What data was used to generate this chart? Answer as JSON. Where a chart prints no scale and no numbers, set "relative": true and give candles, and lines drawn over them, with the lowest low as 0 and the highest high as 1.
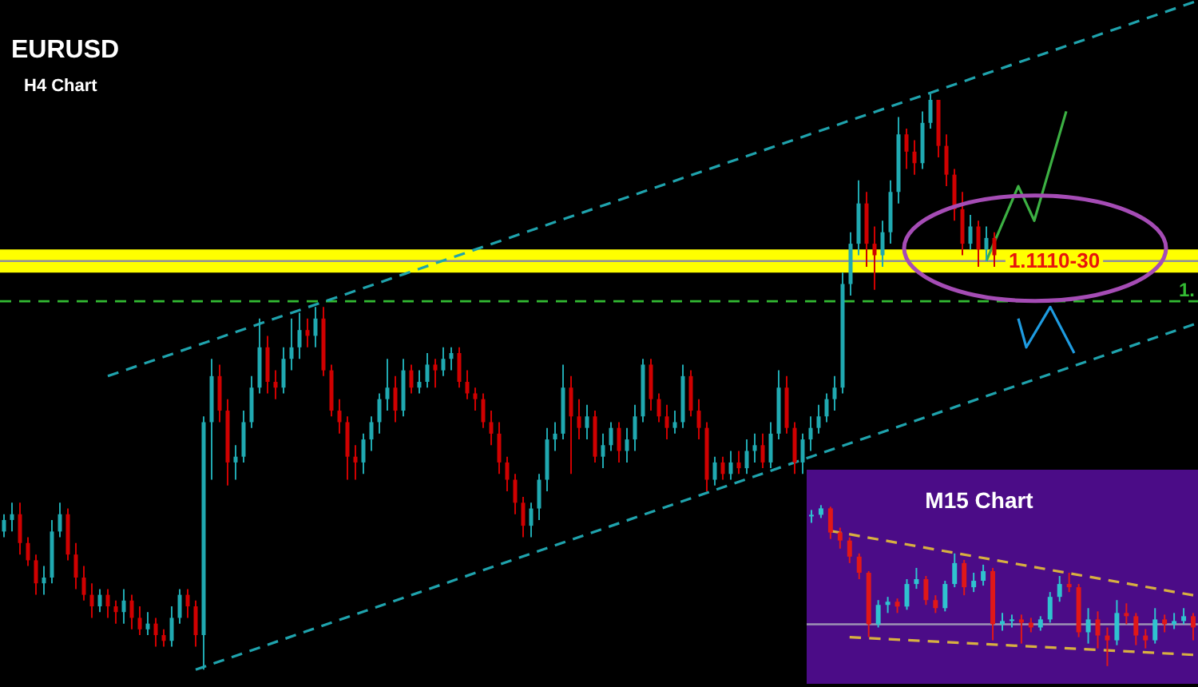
{
  "chart_data": [
    {
      "type": "candlestick",
      "title": "EURUSD",
      "subtitle": "H4 Chart",
      "relative": true,
      "tick_labels": false,
      "categories": [
        null,
        null,
        null,
        null,
        null,
        null,
        null,
        null,
        null,
        null,
        null,
        null,
        null,
        null,
        null,
        null,
        null,
        null,
        null,
        null,
        null,
        null,
        null,
        null,
        null,
        null,
        null,
        null,
        null,
        null,
        null,
        null,
        null,
        null,
        null,
        null,
        null,
        null,
        null,
        null,
        null,
        null,
        null,
        null,
        null,
        null,
        null,
        null,
        null,
        null,
        null,
        null,
        null,
        null,
        null,
        null,
        null,
        null,
        null,
        null,
        null,
        null,
        null,
        null,
        null,
        null,
        null,
        null,
        null,
        null,
        null,
        null,
        null,
        null,
        null,
        null,
        null,
        null,
        null,
        null,
        null,
        null,
        null,
        null,
        null,
        null,
        null,
        null,
        null,
        null,
        null,
        null,
        null,
        null,
        null,
        null,
        null,
        null,
        null,
        null,
        null,
        null,
        null,
        null,
        null,
        null,
        null,
        null,
        null,
        null,
        null,
        null,
        null,
        null,
        null,
        null,
        null,
        null,
        null,
        null,
        null,
        null,
        null,
        null,
        null,
        null,
        null,
        null,
        null,
        null,
        null,
        null,
        null,
        null,
        null,
        null,
        null,
        null,
        null,
        null,
        null,
        null,
        null,
        null,
        null,
        null,
        null,
        null,
        null,
        null
      ],
      "ohlc": [
        [
          0.24,
          0.27,
          0.23,
          0.26
        ],
        [
          0.26,
          0.29,
          0.24,
          0.27
        ],
        [
          0.27,
          0.29,
          0.2,
          0.22
        ],
        [
          0.22,
          0.23,
          0.18,
          0.19
        ],
        [
          0.19,
          0.2,
          0.13,
          0.15
        ],
        [
          0.15,
          0.18,
          0.13,
          0.16
        ],
        [
          0.16,
          0.26,
          0.15,
          0.24
        ],
        [
          0.24,
          0.29,
          0.23,
          0.27
        ],
        [
          0.27,
          0.28,
          0.19,
          0.2
        ],
        [
          0.2,
          0.22,
          0.14,
          0.16
        ],
        [
          0.16,
          0.18,
          0.12,
          0.13
        ],
        [
          0.13,
          0.15,
          0.09,
          0.11
        ],
        [
          0.11,
          0.14,
          0.1,
          0.13
        ],
        [
          0.13,
          0.14,
          0.09,
          0.11
        ],
        [
          0.11,
          0.12,
          0.08,
          0.1
        ],
        [
          0.1,
          0.14,
          0.08,
          0.12
        ],
        [
          0.12,
          0.13,
          0.07,
          0.09
        ],
        [
          0.09,
          0.11,
          0.06,
          0.07
        ],
        [
          0.07,
          0.1,
          0.06,
          0.08
        ],
        [
          0.08,
          0.09,
          0.04,
          0.06
        ],
        [
          0.06,
          0.07,
          0.04,
          0.05
        ],
        [
          0.05,
          0.11,
          0.04,
          0.09
        ],
        [
          0.09,
          0.14,
          0.08,
          0.13
        ],
        [
          0.13,
          0.14,
          0.09,
          0.11
        ],
        [
          0.11,
          0.12,
          0.04,
          0.06
        ],
        [
          0.06,
          0.44,
          0,
          0.43
        ],
        [
          0.43,
          0.54,
          0.33,
          0.51
        ],
        [
          0.51,
          0.53,
          0.43,
          0.45
        ],
        [
          0.45,
          0.47,
          0.32,
          0.36
        ],
        [
          0.36,
          0.39,
          0.33,
          0.37
        ],
        [
          0.37,
          0.45,
          0.36,
          0.43
        ],
        [
          0.43,
          0.51,
          0.42,
          0.49
        ],
        [
          0.49,
          0.61,
          0.48,
          0.56
        ],
        [
          0.56,
          0.58,
          0.48,
          0.5
        ],
        [
          0.5,
          0.52,
          0.47,
          0.49
        ],
        [
          0.49,
          0.56,
          0.48,
          0.54
        ],
        [
          0.54,
          0.61,
          0.52,
          0.56
        ],
        [
          0.56,
          0.62,
          0.54,
          0.59
        ],
        [
          0.59,
          0.61,
          0.56,
          0.58
        ],
        [
          0.58,
          0.63,
          0.56,
          0.61
        ],
        [
          0.61,
          0.63,
          0.51,
          0.52
        ],
        [
          0.52,
          0.53,
          0.44,
          0.45
        ],
        [
          0.45,
          0.47,
          0.41,
          0.43
        ],
        [
          0.43,
          0.44,
          0.33,
          0.37
        ],
        [
          0.37,
          0.39,
          0.33,
          0.36
        ],
        [
          0.36,
          0.41,
          0.34,
          0.4
        ],
        [
          0.4,
          0.44,
          0.38,
          0.43
        ],
        [
          0.43,
          0.48,
          0.41,
          0.47
        ],
        [
          0.47,
          0.54,
          0.45,
          0.49
        ],
        [
          0.49,
          0.51,
          0.43,
          0.45
        ],
        [
          0.45,
          0.54,
          0.44,
          0.52
        ],
        [
          0.52,
          0.53,
          0.48,
          0.49
        ],
        [
          0.49,
          0.52,
          0.48,
          0.5
        ],
        [
          0.5,
          0.55,
          0.49,
          0.53
        ],
        [
          0.53,
          0.54,
          0.49,
          0.52
        ],
        [
          0.52,
          0.56,
          0.51,
          0.54
        ],
        [
          0.54,
          0.56,
          0.52,
          0.55
        ],
        [
          0.55,
          0.56,
          0.49,
          0.5
        ],
        [
          0.5,
          0.52,
          0.47,
          0.48
        ],
        [
          0.48,
          0.49,
          0.45,
          0.47
        ],
        [
          0.47,
          0.48,
          0.42,
          0.43
        ],
        [
          0.43,
          0.45,
          0.39,
          0.41
        ],
        [
          0.41,
          0.43,
          0.34,
          0.36
        ],
        [
          0.36,
          0.37,
          0.31,
          0.33
        ],
        [
          0.33,
          0.34,
          0.27,
          0.29
        ],
        [
          0.29,
          0.3,
          0.23,
          0.25
        ],
        [
          0.25,
          0.29,
          0.23,
          0.28
        ],
        [
          0.28,
          0.34,
          0.26,
          0.33
        ],
        [
          0.33,
          0.42,
          0.31,
          0.4
        ],
        [
          0.4,
          0.43,
          0.38,
          0.41
        ],
        [
          0.41,
          0.53,
          0.4,
          0.49
        ],
        [
          0.49,
          0.51,
          0.34,
          0.44
        ],
        [
          0.44,
          0.47,
          0.4,
          0.42
        ],
        [
          0.42,
          0.46,
          0.4,
          0.44
        ],
        [
          0.44,
          0.45,
          0.36,
          0.37
        ],
        [
          0.37,
          0.41,
          0.35,
          0.39
        ],
        [
          0.39,
          0.43,
          0.38,
          0.42
        ],
        [
          0.42,
          0.43,
          0.36,
          0.38
        ],
        [
          0.38,
          0.42,
          0.36,
          0.4
        ],
        [
          0.4,
          0.46,
          0.38,
          0.44
        ],
        [
          0.44,
          0.54,
          0.43,
          0.53
        ],
        [
          0.53,
          0.54,
          0.45,
          0.47
        ],
        [
          0.47,
          0.48,
          0.43,
          0.44
        ],
        [
          0.44,
          0.46,
          0.4,
          0.42
        ],
        [
          0.42,
          0.45,
          0.41,
          0.43
        ],
        [
          0.43,
          0.53,
          0.42,
          0.51
        ],
        [
          0.51,
          0.52,
          0.44,
          0.45
        ],
        [
          0.45,
          0.47,
          0.4,
          0.42
        ],
        [
          0.42,
          0.43,
          0.31,
          0.33
        ],
        [
          0.33,
          0.37,
          0.32,
          0.36
        ],
        [
          0.36,
          0.37,
          0.33,
          0.34
        ],
        [
          0.34,
          0.38,
          0.33,
          0.36
        ],
        [
          0.36,
          0.38,
          0.34,
          0.35
        ],
        [
          0.35,
          0.4,
          0.34,
          0.38
        ],
        [
          0.38,
          0.41,
          0.36,
          0.39
        ],
        [
          0.39,
          0.41,
          0.35,
          0.36
        ],
        [
          0.36,
          0.43,
          0.35,
          0.41
        ],
        [
          0.41,
          0.52,
          0.4,
          0.49
        ],
        [
          0.49,
          0.51,
          0.41,
          0.42
        ],
        [
          0.42,
          0.43,
          0.34,
          0.36
        ],
        [
          0.36,
          0.41,
          0.34,
          0.4
        ],
        [
          0.4,
          0.44,
          0.38,
          0.42
        ],
        [
          0.42,
          0.46,
          0.41,
          0.44
        ],
        [
          0.44,
          0.48,
          0.43,
          0.47
        ],
        [
          0.47,
          0.51,
          0.45,
          0.49
        ],
        [
          0.49,
          0.69,
          0.48,
          0.67
        ],
        [
          0.67,
          0.76,
          0.65,
          0.74
        ],
        [
          0.74,
          0.85,
          0.72,
          0.81
        ],
        [
          0.81,
          0.83,
          0.7,
          0.74
        ],
        [
          0.74,
          0.77,
          0.66,
          0.72
        ],
        [
          0.72,
          0.78,
          0.7,
          0.76
        ],
        [
          0.76,
          0.85,
          0.74,
          0.83
        ],
        [
          0.83,
          0.96,
          0.81,
          0.93
        ],
        [
          0.93,
          0.94,
          0.87,
          0.9
        ],
        [
          0.9,
          0.92,
          0.86,
          0.88
        ],
        [
          0.88,
          0.97,
          0.87,
          0.95
        ],
        [
          0.95,
          1,
          0.94,
          0.99
        ],
        [
          0.99,
          0.99,
          0.89,
          0.91
        ],
        [
          0.91,
          0.93,
          0.84,
          0.86
        ],
        [
          0.86,
          0.87,
          0.78,
          0.8
        ],
        [
          0.8,
          0.83,
          0.72,
          0.74
        ],
        [
          0.74,
          0.79,
          0.73,
          0.77
        ],
        [
          0.77,
          0.78,
          0.7,
          0.73
        ],
        [
          0.73,
          0.77,
          0.71,
          0.75
        ],
        [
          0.75,
          0.76,
          0.7,
          0.72
        ],
        null,
        null,
        null,
        null,
        null,
        null,
        null,
        null,
        null,
        null,
        null,
        null,
        null,
        null,
        null,
        null,
        null,
        null,
        null,
        null,
        null,
        null,
        null,
        null,
        null
      ],
      "colors": [
        "#20a9b1",
        "#20a9b1",
        "#d00000",
        "#d00000",
        "#d00000",
        "#20a9b1",
        "#20a9b1",
        "#20a9b1",
        "#d00000",
        "#d00000",
        "#d00000",
        "#d00000",
        "#20a9b1",
        "#d00000",
        "#d00000",
        "#20a9b1",
        "#d00000",
        "#d00000",
        "#20a9b1",
        "#d00000",
        "#d00000",
        "#20a9b1",
        "#20a9b1",
        "#d00000",
        "#d00000",
        "#20a9b1",
        "#20a9b1",
        "#d00000",
        "#d00000",
        "#20a9b1",
        "#20a9b1",
        "#20a9b1",
        "#20a9b1",
        "#d00000",
        "#d00000",
        "#20a9b1",
        "#20a9b1",
        "#20a9b1",
        "#d00000",
        "#20a9b1",
        "#d00000",
        "#d00000",
        "#d00000",
        "#d00000",
        "#d00000",
        "#20a9b1",
        "#20a9b1",
        "#20a9b1",
        "#20a9b1",
        "#d00000",
        "#20a9b1",
        "#d00000",
        "#20a9b1",
        "#20a9b1",
        "#d00000",
        "#20a9b1",
        "#20a9b1",
        "#d00000",
        "#d00000",
        "#d00000",
        "#d00000",
        "#d00000",
        "#d00000",
        "#d00000",
        "#d00000",
        "#d00000",
        "#20a9b1",
        "#20a9b1",
        "#20a9b1",
        "#20a9b1",
        "#20a9b1",
        "#d00000",
        "#d00000",
        "#20a9b1",
        "#d00000",
        "#20a9b1",
        "#20a9b1",
        "#d00000",
        "#20a9b1",
        "#20a9b1",
        "#20a9b1",
        "#d00000",
        "#d00000",
        "#d00000",
        "#20a9b1",
        "#20a9b1",
        "#d00000",
        "#d00000",
        "#d00000",
        "#20a9b1",
        "#d00000",
        "#20a9b1",
        "#d00000",
        "#20a9b1",
        "#20a9b1",
        "#d00000",
        "#20a9b1",
        "#20a9b1",
        "#d00000",
        "#d00000",
        "#20a9b1",
        "#20a9b1",
        "#20a9b1",
        "#20a9b1",
        "#20a9b1",
        "#20a9b1",
        "#20a9b1",
        "#20a9b1",
        "#d00000",
        "#d00000",
        "#20a9b1",
        "#20a9b1",
        "#20a9b1",
        "#d00000",
        "#d00000",
        "#20a9b1",
        "#20a9b1",
        "#d00000",
        "#d00000",
        "#d00000",
        "#d00000",
        "#20a9b1",
        "#d00000",
        "#20a9b1",
        "#d00000",
        null,
        null,
        null,
        null,
        null,
        null,
        null,
        null,
        null,
        null,
        null,
        null,
        null,
        null,
        null,
        null,
        null,
        null,
        null,
        null,
        null,
        null,
        null,
        null,
        null
      ],
      "series": [
        {
          "type": "line",
          "color": "#1fa3ad",
          "line_style": "dashed",
          "values": [
            null,
            null,
            null,
            null,
            null,
            null,
            null,
            null,
            null,
            null,
            null,
            null,
            null,
            0.51,
            null,
            null,
            null,
            null,
            null,
            null,
            null,
            null,
            null,
            null,
            null,
            null,
            null,
            null,
            null,
            null,
            null,
            null,
            null,
            null,
            null,
            null,
            null,
            null,
            null,
            null,
            null,
            null,
            null,
            null,
            null,
            null,
            null,
            null,
            null,
            null,
            null,
            null,
            null,
            null,
            null,
            null,
            null,
            null,
            null,
            null,
            null,
            null,
            null,
            null,
            null,
            null,
            null,
            null,
            null,
            null,
            null,
            null,
            null,
            null,
            null,
            null,
            null,
            null,
            null,
            null,
            null,
            null,
            null,
            null,
            null,
            null,
            null,
            null,
            null,
            null,
            null,
            null,
            null,
            null,
            null,
            null,
            null,
            null,
            null,
            null,
            null,
            null,
            null,
            null,
            null,
            null,
            null,
            null,
            null,
            null,
            null,
            null,
            null,
            null,
            null,
            null,
            null,
            null,
            null,
            null,
            null,
            null,
            null,
            null,
            null,
            null,
            null,
            null,
            null,
            null,
            null,
            null,
            null,
            null,
            null,
            null,
            null,
            null,
            null,
            null,
            null,
            null,
            null,
            null,
            null,
            null,
            null,
            null,
            null,
            1.16
          ]
        },
        {
          "type": "line",
          "color": "#1fa3ad",
          "line_style": "dashed",
          "values": [
            null,
            null,
            null,
            null,
            null,
            null,
            null,
            null,
            null,
            null,
            null,
            null,
            null,
            null,
            null,
            null,
            null,
            null,
            null,
            null,
            null,
            null,
            null,
            null,
            0,
            null,
            null,
            null,
            null,
            null,
            null,
            null,
            null,
            null,
            null,
            null,
            null,
            null,
            null,
            null,
            null,
            null,
            null,
            null,
            null,
            null,
            null,
            null,
            null,
            null,
            null,
            null,
            null,
            null,
            null,
            null,
            null,
            null,
            null,
            null,
            null,
            null,
            null,
            null,
            null,
            null,
            null,
            null,
            null,
            null,
            null,
            null,
            null,
            null,
            null,
            null,
            null,
            null,
            null,
            null,
            null,
            null,
            null,
            null,
            null,
            null,
            null,
            null,
            null,
            null,
            null,
            null,
            null,
            null,
            null,
            null,
            null,
            null,
            null,
            null,
            null,
            null,
            null,
            null,
            null,
            null,
            null,
            null,
            null,
            null,
            null,
            null,
            null,
            null,
            null,
            null,
            null,
            null,
            null,
            null,
            null,
            null,
            null,
            null,
            null,
            null,
            null,
            null,
            null,
            null,
            null,
            null,
            null,
            null,
            null,
            null,
            null,
            null,
            null,
            null,
            null,
            null,
            null,
            null,
            null,
            null,
            null,
            null,
            null,
            0.6
          ]
        },
        {
          "type": "line",
          "color": "#3cb043",
          "values": [
            null,
            null,
            null,
            null,
            null,
            null,
            null,
            null,
            null,
            null,
            null,
            null,
            null,
            null,
            null,
            null,
            null,
            null,
            null,
            null,
            null,
            null,
            null,
            null,
            null,
            null,
            null,
            null,
            null,
            null,
            null,
            null,
            null,
            null,
            null,
            null,
            null,
            null,
            null,
            null,
            null,
            null,
            null,
            null,
            null,
            null,
            null,
            null,
            null,
            null,
            null,
            null,
            null,
            null,
            null,
            null,
            null,
            null,
            null,
            null,
            null,
            null,
            null,
            null,
            null,
            null,
            null,
            null,
            null,
            null,
            null,
            null,
            null,
            null,
            null,
            null,
            null,
            null,
            null,
            null,
            null,
            null,
            null,
            null,
            null,
            null,
            null,
            null,
            null,
            null,
            null,
            null,
            null,
            null,
            null,
            null,
            null,
            null,
            null,
            null,
            null,
            null,
            null,
            null,
            null,
            null,
            null,
            null,
            null,
            null,
            null,
            null,
            null,
            null,
            null,
            null,
            null,
            null,
            null,
            null,
            null,
            null,
            null,
            0.71,
            null,
            null,
            null,
            0.84,
            null,
            0.78,
            null,
            null,
            null,
            0.97,
            null,
            null,
            null,
            null,
            null,
            null,
            null,
            null,
            null,
            null,
            null,
            null,
            null,
            null,
            null,
            null
          ]
        },
        {
          "type": "line",
          "color": "#1e9be0",
          "values": [
            null,
            null,
            null,
            null,
            null,
            null,
            null,
            null,
            null,
            null,
            null,
            null,
            null,
            null,
            null,
            null,
            null,
            null,
            null,
            null,
            null,
            null,
            null,
            null,
            null,
            null,
            null,
            null,
            null,
            null,
            null,
            null,
            null,
            null,
            null,
            null,
            null,
            null,
            null,
            null,
            null,
            null,
            null,
            null,
            null,
            null,
            null,
            null,
            null,
            null,
            null,
            null,
            null,
            null,
            null,
            null,
            null,
            null,
            null,
            null,
            null,
            null,
            null,
            null,
            null,
            null,
            null,
            null,
            null,
            null,
            null,
            null,
            null,
            null,
            null,
            null,
            null,
            null,
            null,
            null,
            null,
            null,
            null,
            null,
            null,
            null,
            null,
            null,
            null,
            null,
            null,
            null,
            null,
            null,
            null,
            null,
            null,
            null,
            null,
            null,
            null,
            null,
            null,
            null,
            null,
            null,
            null,
            null,
            null,
            null,
            null,
            null,
            null,
            null,
            null,
            null,
            null,
            null,
            null,
            null,
            null,
            null,
            null,
            null,
            null,
            null,
            null,
            0.61,
            0.56,
            null,
            null,
            0.63,
            null,
            null,
            0.55,
            null,
            null,
            null,
            null,
            null,
            null,
            null,
            null,
            null,
            null,
            null,
            null,
            null,
            null,
            null
          ]
        }
      ],
      "bands": [
        {
          "axis": "y",
          "from": 0.69,
          "to": 0.73,
          "label": "1.1110-30",
          "color": "#ffff00"
        }
      ],
      "ref_lines": [
        {
          "axis": "y",
          "value": 0.71,
          "color": "#8e8e9c"
        },
        {
          "axis": "y",
          "value": 0.64,
          "label": "1.",
          "color": "#33bb33",
          "line_style": "dashed"
        }
      ]
    },
    {
      "type": "candlestick",
      "title": "M15 Chart",
      "relative": true,
      "tick_labels": false,
      "categories": [
        null,
        null,
        null,
        null,
        null,
        null,
        null,
        null,
        null,
        null,
        null,
        null,
        null,
        null,
        null,
        null,
        null,
        null,
        null,
        null,
        null,
        null,
        null,
        null,
        null,
        null,
        null,
        null,
        null,
        null,
        null,
        null,
        null,
        null,
        null,
        null,
        null,
        null,
        null,
        null,
        null
      ],
      "ohlc": [
        [
          0.93,
          0.97,
          0.89,
          0.94
        ],
        [
          0.94,
          1,
          0.92,
          0.98
        ],
        [
          0.98,
          0.99,
          0.79,
          0.83
        ],
        [
          0.83,
          0.86,
          0.73,
          0.78
        ],
        [
          0.78,
          0.8,
          0.64,
          0.68
        ],
        [
          0.68,
          0.7,
          0.54,
          0.58
        ],
        [
          0.58,
          0.59,
          0.18,
          0.26
        ],
        [
          0.26,
          0.41,
          0.24,
          0.38
        ],
        [
          0.38,
          0.43,
          0.33,
          0.4
        ],
        [
          0.4,
          0.42,
          0.33,
          0.37
        ],
        [
          0.37,
          0.54,
          0.35,
          0.51
        ],
        [
          0.51,
          0.61,
          0.48,
          0.54
        ],
        [
          0.54,
          0.56,
          0.38,
          0.41
        ],
        [
          0.41,
          0.44,
          0.33,
          0.36
        ],
        [
          0.36,
          0.53,
          0.34,
          0.51
        ],
        [
          0.51,
          0.7,
          0.49,
          0.64
        ],
        [
          0.64,
          0.66,
          0.44,
          0.49
        ],
        [
          0.49,
          0.58,
          0.46,
          0.53
        ],
        [
          0.53,
          0.63,
          0.5,
          0.59
        ],
        [
          0.59,
          0.61,
          0.16,
          0.26
        ],
        [
          0.26,
          0.33,
          0.22,
          0.28
        ],
        [
          0.28,
          0.32,
          0.24,
          0.29
        ],
        [
          0.29,
          0.32,
          0.14,
          0.27
        ],
        [
          0.27,
          0.3,
          0.21,
          0.24
        ],
        [
          0.24,
          0.31,
          0.22,
          0.29
        ],
        [
          0.29,
          0.46,
          0.27,
          0.43
        ],
        [
          0.43,
          0.56,
          0.4,
          0.51
        ],
        [
          0.51,
          0.58,
          0.46,
          0.49
        ],
        [
          0.49,
          0.51,
          0.18,
          0.21
        ],
        [
          0.21,
          0.36,
          0.14,
          0.29
        ],
        [
          0.29,
          0.34,
          0.11,
          0.19
        ],
        [
          0.19,
          0.24,
          0,
          0.16
        ],
        [
          0.16,
          0.41,
          0.13,
          0.33
        ],
        [
          0.33,
          0.39,
          0.26,
          0.31
        ],
        [
          0.31,
          0.33,
          0.13,
          0.19
        ],
        [
          0.19,
          0.23,
          0.11,
          0.16
        ],
        [
          0.16,
          0.36,
          0.14,
          0.29
        ],
        [
          0.29,
          0.32,
          0.21,
          0.26
        ],
        [
          0.26,
          0.33,
          0.23,
          0.28
        ],
        [
          0.28,
          0.36,
          0.26,
          0.31
        ],
        [
          0.31,
          0.33,
          0.16,
          0.24
        ]
      ],
      "colors": [
        "#2fc3cf",
        "#2fc3cf",
        "#e01818",
        "#e01818",
        "#e01818",
        "#e01818",
        "#e01818",
        "#2fc3cf",
        "#2fc3cf",
        "#e01818",
        "#2fc3cf",
        "#2fc3cf",
        "#e01818",
        "#e01818",
        "#2fc3cf",
        "#2fc3cf",
        "#e01818",
        "#2fc3cf",
        "#2fc3cf",
        "#e01818",
        "#2fc3cf",
        "#2fc3cf",
        "#e01818",
        "#e01818",
        "#2fc3cf",
        "#2fc3cf",
        "#2fc3cf",
        "#e01818",
        "#e01818",
        "#2fc3cf",
        "#e01818",
        "#e01818",
        "#2fc3cf",
        "#e01818",
        "#e01818",
        "#e01818",
        "#2fc3cf",
        "#e01818",
        "#2fc3cf",
        "#2fc3cf",
        "#e01818"
      ],
      "series": [
        {
          "type": "line",
          "color": "#d8b040",
          "line_style": "dashed",
          "values": [
            null,
            null,
            0.84,
            null,
            null,
            null,
            null,
            null,
            null,
            null,
            null,
            null,
            null,
            null,
            null,
            null,
            null,
            null,
            null,
            null,
            null,
            null,
            null,
            null,
            null,
            null,
            null,
            null,
            null,
            null,
            null,
            null,
            null,
            null,
            null,
            null,
            null,
            null,
            null,
            null,
            0.44
          ]
        },
        {
          "type": "line",
          "color": "#d8b040",
          "line_style": "dashed",
          "values": [
            null,
            null,
            null,
            null,
            0.18,
            null,
            null,
            null,
            null,
            null,
            null,
            null,
            null,
            null,
            null,
            null,
            null,
            null,
            null,
            null,
            null,
            null,
            null,
            null,
            null,
            null,
            null,
            null,
            null,
            null,
            null,
            null,
            null,
            null,
            null,
            null,
            null,
            null,
            null,
            null,
            0.07
          ]
        }
      ],
      "ref_lines": [
        {
          "axis": "y",
          "value": 0.26,
          "color": "#9d93b5"
        }
      ]
    }
  ]
}
